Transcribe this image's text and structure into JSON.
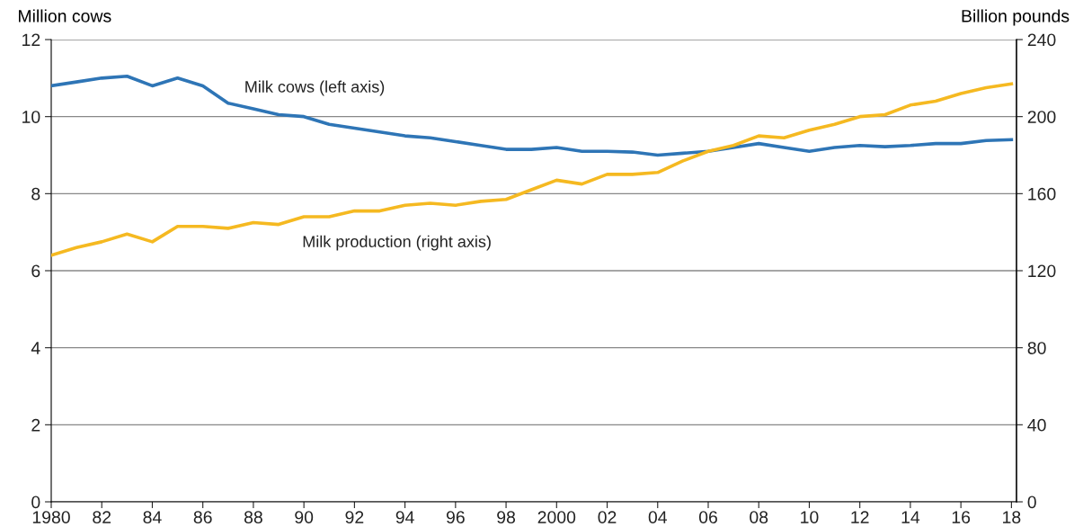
{
  "chart_data": {
    "type": "line",
    "ylabel": "Million cows",
    "y2label": "Billion pounds",
    "x": [
      1980,
      1981,
      1982,
      1983,
      1984,
      1985,
      1986,
      1987,
      1988,
      1989,
      1990,
      1991,
      1992,
      1993,
      1994,
      1995,
      1996,
      1997,
      1998,
      1999,
      2000,
      2001,
      2002,
      2003,
      2004,
      2005,
      2006,
      2007,
      2008,
      2009,
      2010,
      2011,
      2012,
      2013,
      2014,
      2015,
      2016,
      2017,
      2018
    ],
    "series": [
      {
        "name": "Milk cows (left axis)",
        "color": "#2e75b6",
        "values": [
          10.8,
          10.9,
          11.0,
          11.05,
          10.8,
          11.0,
          10.8,
          10.35,
          10.2,
          10.05,
          10.0,
          9.8,
          9.7,
          9.6,
          9.5,
          9.45,
          9.35,
          9.25,
          9.15,
          9.15,
          9.2,
          9.1,
          9.1,
          9.08,
          9.0,
          9.05,
          9.1,
          9.2,
          9.3,
          9.2,
          9.1,
          9.2,
          9.25,
          9.22,
          9.25,
          9.3,
          9.3,
          9.38,
          9.4
        ]
      },
      {
        "name": "Milk production (right axis)",
        "color": "#f5b921",
        "axis": "y2",
        "values": [
          128,
          132,
          135,
          139,
          135,
          143,
          143,
          142,
          145,
          144,
          148,
          148,
          151,
          151,
          154,
          155,
          154,
          156,
          157,
          162,
          167,
          165,
          170,
          170,
          171,
          177,
          182,
          185,
          190,
          189,
          193,
          196,
          200,
          201,
          206,
          208,
          212,
          215,
          217
        ]
      }
    ],
    "xlim": [
      1980,
      2018.2
    ],
    "xticks": [
      {
        "value": 1980,
        "label": "1980"
      },
      {
        "value": 1982,
        "label": "82"
      },
      {
        "value": 1984,
        "label": "84"
      },
      {
        "value": 1986,
        "label": "86"
      },
      {
        "value": 1988,
        "label": "88"
      },
      {
        "value": 1990,
        "label": "90"
      },
      {
        "value": 1992,
        "label": "92"
      },
      {
        "value": 1994,
        "label": "94"
      },
      {
        "value": 1996,
        "label": "96"
      },
      {
        "value": 1998,
        "label": "98"
      },
      {
        "value": 2000,
        "label": "2000"
      },
      {
        "value": 2002,
        "label": "02"
      },
      {
        "value": 2004,
        "label": "04"
      },
      {
        "value": 2006,
        "label": "06"
      },
      {
        "value": 2008,
        "label": "08"
      },
      {
        "value": 2010,
        "label": "10"
      },
      {
        "value": 2012,
        "label": "12"
      },
      {
        "value": 2014,
        "label": "14"
      },
      {
        "value": 2016,
        "label": "16"
      },
      {
        "value": 2018,
        "label": "18"
      }
    ],
    "ylim": [
      0,
      12
    ],
    "yticks": [
      0,
      2,
      4,
      6,
      8,
      10,
      12
    ],
    "y2lim": [
      0,
      240
    ],
    "y2ticks": [
      0,
      40,
      80,
      120,
      160,
      200,
      240
    ],
    "grid": "y",
    "legend": false,
    "marker": "none",
    "line_style": "solid"
  }
}
